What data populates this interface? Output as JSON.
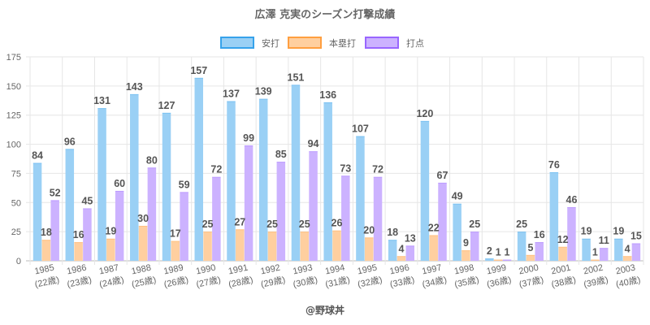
{
  "chart_data": {
    "type": "bar",
    "title": "広澤 克実のシーズン打撃成績",
    "xlabel": "",
    "ylabel": "",
    "ylim": [
      0,
      175
    ],
    "yticks": [
      0,
      25,
      50,
      75,
      100,
      125,
      150,
      175
    ],
    "grid": true,
    "legend_position": "top",
    "categories": [
      "1985",
      "1986",
      "1987",
      "1988",
      "1989",
      "1990",
      "1991",
      "1992",
      "1993",
      "1994",
      "1995",
      "1996",
      "1997",
      "1998",
      "1999",
      "2000",
      "2001",
      "2002",
      "2003"
    ],
    "category_sublabels": [
      "(22歳)",
      "(23歳)",
      "(24歳)",
      "(25歳)",
      "(26歳)",
      "(27歳)",
      "(28歳)",
      "(29歳)",
      "(30歳)",
      "(31歳)",
      "(32歳)",
      "(33歳)",
      "(34歳)",
      "(35歳)",
      "(36歳)",
      "(37歳)",
      "(38歳)",
      "(39歳)",
      "(40歳)"
    ],
    "series": [
      {
        "name": "安打",
        "fill": "#9ad0f5",
        "stroke": "#36a2eb",
        "values": [
          84,
          96,
          131,
          143,
          127,
          157,
          137,
          139,
          151,
          136,
          107,
          18,
          120,
          49,
          2,
          25,
          76,
          19,
          19
        ]
      },
      {
        "name": "本塁打",
        "fill": "#ffcf9f",
        "stroke": "#ff9f40",
        "values": [
          18,
          16,
          19,
          30,
          17,
          25,
          27,
          25,
          25,
          26,
          20,
          4,
          22,
          9,
          1,
          5,
          12,
          1,
          4
        ]
      },
      {
        "name": "打点",
        "fill": "#ccb2ff",
        "stroke": "#9966ff",
        "values": [
          52,
          45,
          60,
          80,
          59,
          72,
          99,
          85,
          94,
          73,
          72,
          13,
          67,
          25,
          1,
          16,
          46,
          11,
          15
        ]
      }
    ]
  },
  "credit": "@野球丼"
}
